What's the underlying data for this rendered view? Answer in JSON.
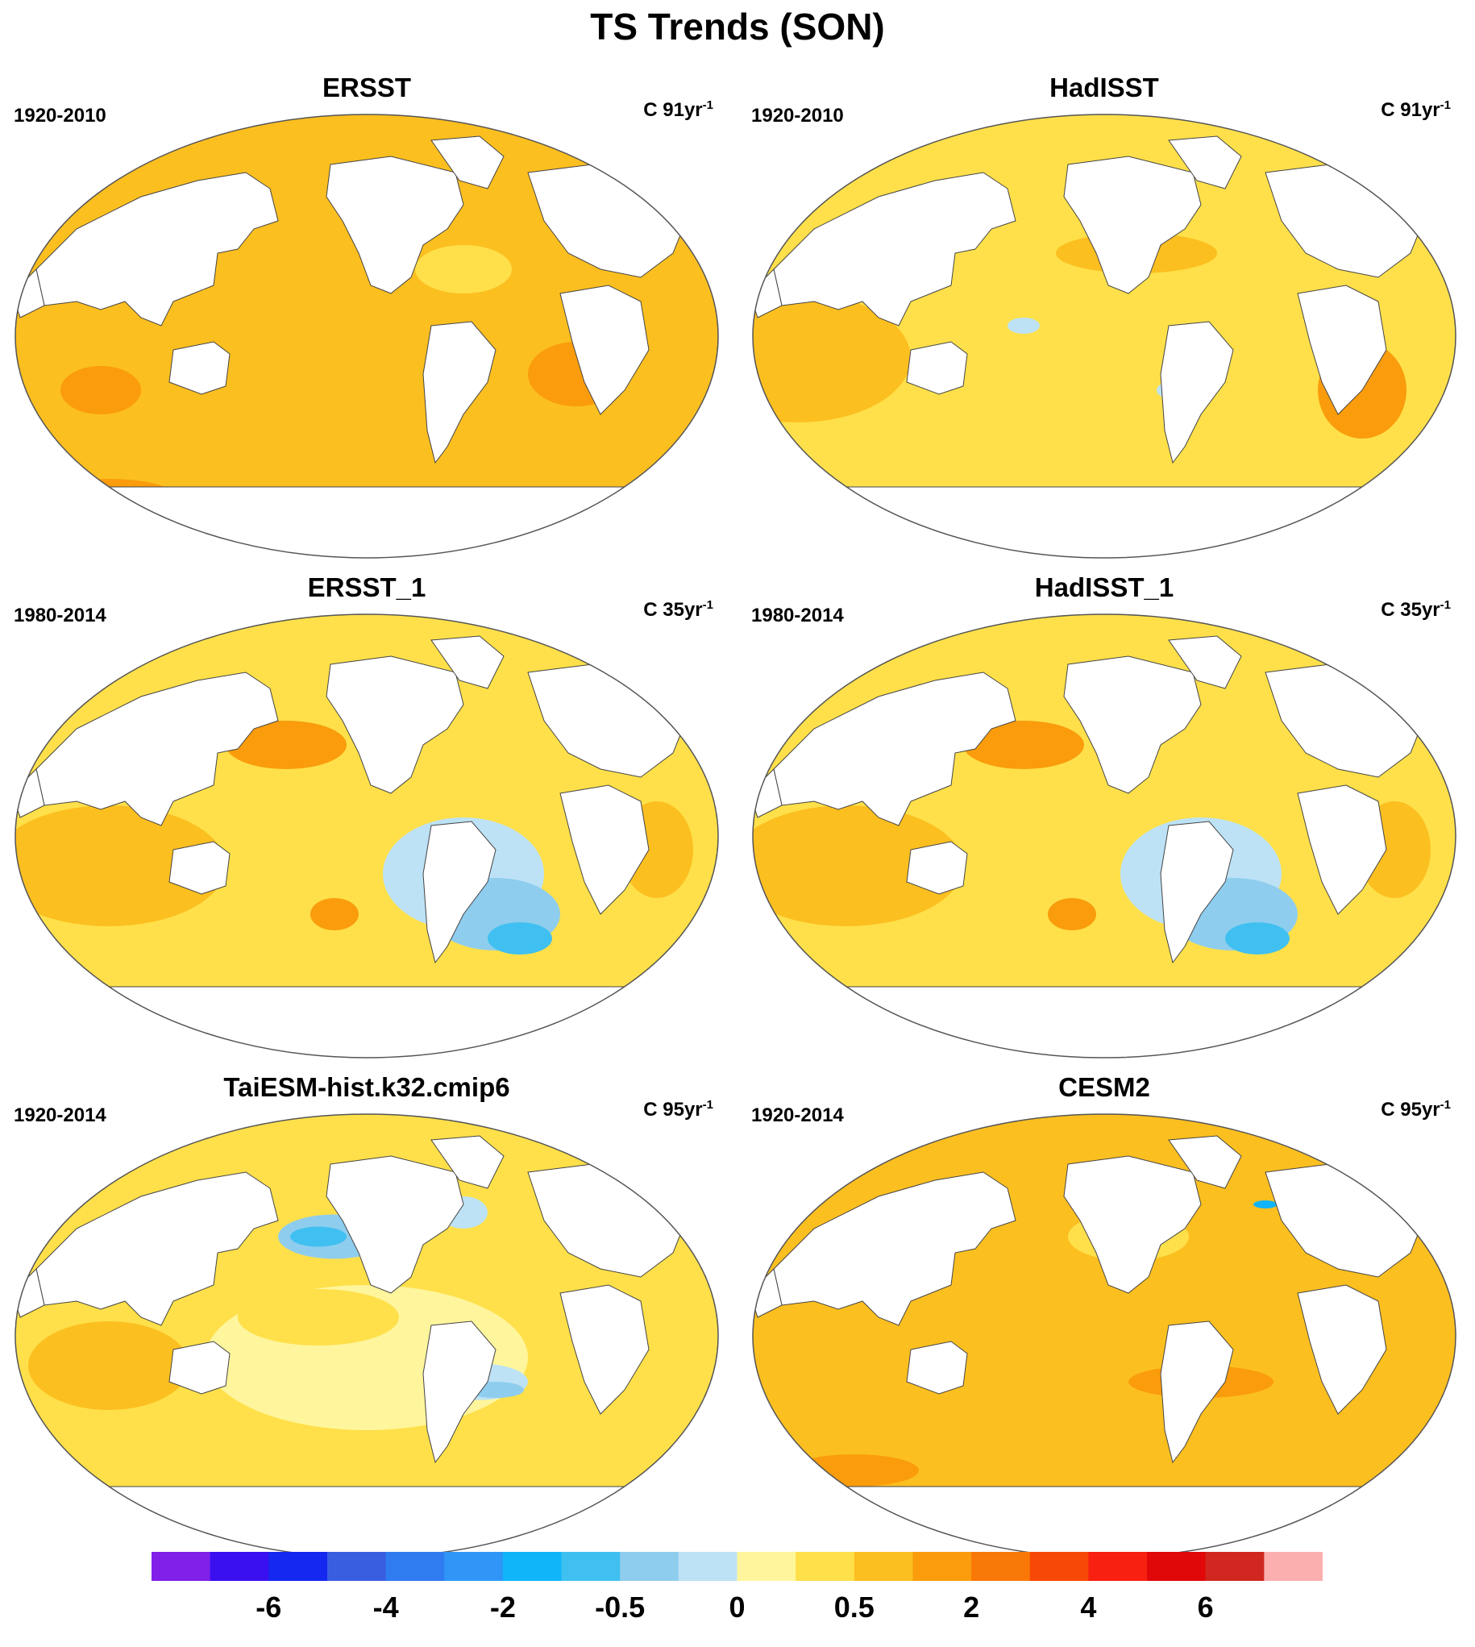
{
  "title": "TS Trends (SON)",
  "chart_data": [
    {
      "type": "heatmap",
      "title": "ERSST",
      "period": "1920-2010",
      "units_prefix": "C ",
      "units_value": "91yr",
      "units_exp": "-1",
      "fill": "warm",
      "cool_regions": [
        "North Atlantic subpolar"
      ],
      "projection": "Robinson, Pacific-centered"
    },
    {
      "type": "heatmap",
      "title": "HadISST",
      "period": "1920-2010",
      "units_prefix": "C ",
      "units_value": "91yr",
      "units_exp": "-1",
      "fill": "warm-mixed",
      "cool_regions": [
        "Southern Ocean band",
        "Central Pacific patches"
      ],
      "projection": "Robinson, Pacific-centered"
    },
    {
      "type": "heatmap",
      "title": "ERSST_1",
      "period": "1980-2014",
      "units_prefix": "C ",
      "units_value": "35yr",
      "units_exp": "-1",
      "fill": "dipole",
      "cool_regions": [
        "Eastern Pacific",
        "Southern Ocean"
      ],
      "projection": "Robinson, Pacific-centered"
    },
    {
      "type": "heatmap",
      "title": "HadISST_1",
      "period": "1980-2014",
      "units_prefix": "C ",
      "units_value": "35yr",
      "units_exp": "-1",
      "fill": "dipole",
      "cool_regions": [
        "Eastern Pacific",
        "Southern Ocean"
      ],
      "projection": "Robinson, Pacific-centered"
    },
    {
      "type": "heatmap",
      "title": "TaiESM-hist.k32.cmip6",
      "period": "1920-2014",
      "units_prefix": "C ",
      "units_value": "95yr",
      "units_exp": "-1",
      "fill": "warm-mixed",
      "cool_regions": [
        "North Pacific",
        "Eastern Pacific"
      ],
      "projection": "Robinson, Pacific-centered"
    },
    {
      "type": "heatmap",
      "title": "CESM2",
      "period": "1920-2014",
      "units_prefix": "C ",
      "units_value": "95yr",
      "units_exp": "-1",
      "fill": "warm",
      "cool_regions": [
        "North Pacific small patch"
      ],
      "projection": "Robinson, Pacific-centered"
    }
  ],
  "colorbar": {
    "colors": [
      "#8020e8",
      "#3a10f0",
      "#1428f0",
      "#3a5ee0",
      "#2f7cf0",
      "#2f96f8",
      "#10b4f8",
      "#40c0f0",
      "#8fcdee",
      "#bde2f5",
      "#fff59c",
      "#ffe04a",
      "#fcbf20",
      "#fa9c0c",
      "#f87808",
      "#f84808",
      "#f82010",
      "#e00808",
      "#d02820",
      "#fcafaf"
    ],
    "labels": [
      "-6",
      "-4",
      "-2",
      "-0.5",
      "0",
      "0.5",
      "2",
      "4",
      "6"
    ],
    "label_boundaries": [
      2,
      4,
      6,
      8,
      10,
      12,
      14,
      16,
      18
    ]
  }
}
